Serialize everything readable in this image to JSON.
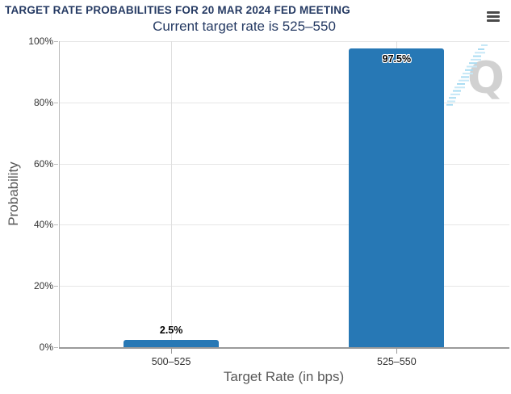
{
  "toolbar": {
    "menu_icon": "hamburger-menu-icon"
  },
  "watermark": {
    "letter": "Q"
  },
  "colors": {
    "bar": "#2778b5",
    "title_navy": "#253a63",
    "axis_text": "#333333",
    "axis_title_gray": "#595959",
    "watermark_gray": "#d1d1d1",
    "watermark_blue": "#aadcf2"
  },
  "chart_data": {
    "type": "bar",
    "title": "TARGET RATE PROBABILITIES FOR 20 MAR 2024 FED MEETING",
    "subtitle": "Current target rate is 525–550",
    "categories": [
      "500–525",
      "525–550"
    ],
    "values": [
      2.5,
      97.5
    ],
    "value_labels": [
      "2.5%",
      "97.5%"
    ],
    "xlabel": "Target Rate (in bps)",
    "ylabel": "Probability",
    "ylim": [
      0,
      100
    ],
    "ytick_labels": [
      "100%",
      "80%",
      "60%",
      "40%",
      "20%",
      "0%"
    ],
    "grid": true,
    "legend": false,
    "bar_color": "#2778b5"
  }
}
